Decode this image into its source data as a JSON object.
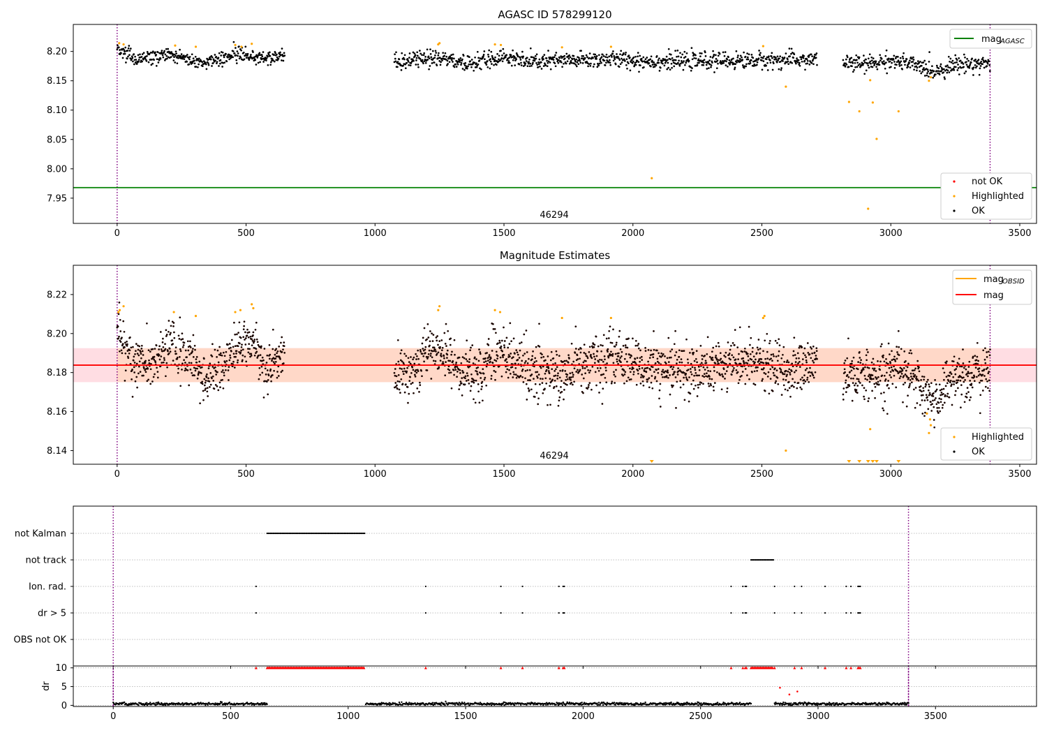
{
  "chart_data": [
    {
      "type": "scatter",
      "title": "AGASC ID 578299120",
      "xlim": [
        -170,
        3565
      ],
      "ylim": [
        7.907,
        8.246
      ],
      "xticks": [
        0,
        500,
        1000,
        1500,
        2000,
        2500,
        3000,
        3500
      ],
      "yticks": [
        7.95,
        8.0,
        8.05,
        8.1,
        8.15,
        8.2
      ],
      "ytick_labels": [
        "7.95",
        "8.00",
        "8.05",
        "8.10",
        "8.15",
        "8.20"
      ],
      "obsid_label": "46294",
      "obsid_label_x": 1695,
      "vlines": [
        0,
        3385
      ],
      "hline": {
        "name": "mag_AGASC",
        "value": 7.968,
        "color": "#008000"
      },
      "ok_segments": [
        {
          "x0": 0,
          "x1": 650,
          "ylevels": [
            [
              0,
              8.203
            ],
            [
              80,
              8.187
            ],
            [
              200,
              8.196
            ],
            [
              320,
              8.181
            ],
            [
              480,
              8.197
            ],
            [
              560,
              8.187
            ],
            [
              650,
              8.193
            ]
          ],
          "spread": 0.006
        },
        {
          "x0": 1075,
          "x1": 2715,
          "ylevels": [
            [
              1075,
              8.18
            ],
            [
              1200,
              8.188
            ],
            [
              1280,
              8.187
            ],
            [
              1350,
              8.178
            ],
            [
              1480,
              8.191
            ],
            [
              1600,
              8.182
            ],
            [
              1900,
              8.187
            ],
            [
              2100,
              8.183
            ],
            [
              2500,
              8.185
            ],
            [
              2715,
              8.186
            ]
          ],
          "spread": 0.007
        },
        {
          "x0": 2815,
          "x1": 3385,
          "ylevels": [
            [
              2815,
              8.181
            ],
            [
              2900,
              8.178
            ],
            [
              3000,
              8.185
            ],
            [
              3100,
              8.176
            ],
            [
              3170,
              8.166
            ],
            [
              3250,
              8.178
            ],
            [
              3385,
              8.18
            ]
          ],
          "spread": 0.007
        }
      ],
      "highlighted": [
        [
          8,
          8.214
        ],
        [
          25,
          8.212
        ],
        [
          225,
          8.21
        ],
        [
          305,
          8.208
        ],
        [
          458,
          8.211
        ],
        [
          482,
          8.208
        ],
        [
          522,
          8.213
        ],
        [
          1245,
          8.212
        ],
        [
          1250,
          8.214
        ],
        [
          1465,
          8.212
        ],
        [
          1488,
          8.211
        ],
        [
          1725,
          8.207
        ],
        [
          1915,
          8.208
        ],
        [
          2073,
          7.984
        ],
        [
          2505,
          8.209
        ],
        [
          2593,
          8.14
        ],
        [
          2838,
          8.114
        ],
        [
          2878,
          8.098
        ],
        [
          2912,
          7.932
        ],
        [
          2920,
          8.151
        ],
        [
          2930,
          8.113
        ],
        [
          2945,
          8.051
        ],
        [
          3030,
          8.098
        ],
        [
          3148,
          8.15
        ],
        [
          3155,
          8.156
        ]
      ],
      "legend": {
        "lines": [
          {
            "label": "mag",
            "subscript": "AGASC",
            "color": "#008000"
          }
        ],
        "markers": [
          {
            "label": "not OK",
            "color": "#ff0000"
          },
          {
            "label": "Highlighted",
            "color": "#ffa500"
          },
          {
            "label": "OK",
            "color": "#000000"
          }
        ]
      }
    },
    {
      "type": "scatter",
      "title": "Magnitude Estimates",
      "xlim": [
        -170,
        3565
      ],
      "ylim": [
        8.133,
        8.235
      ],
      "xticks": [
        0,
        500,
        1000,
        1500,
        2000,
        2500,
        3000,
        3500
      ],
      "yticks": [
        8.14,
        8.16,
        8.18,
        8.2,
        8.22
      ],
      "ytick_labels": [
        "8.14",
        "8.16",
        "8.18",
        "8.20",
        "8.22"
      ],
      "obsid_label": "46294",
      "obsid_label_x": 1695,
      "vlines": [
        0,
        3385
      ],
      "mag_line": {
        "value": 8.1838,
        "color": "#ff0000"
      },
      "mag_band": {
        "low": 8.1751,
        "high": 8.1925,
        "full_x": [
          -170,
          3565
        ],
        "obsid_x": [
          0,
          3385
        ]
      },
      "ok_segments": [
        {
          "x0": 0,
          "x1": 650,
          "ylevels": [
            [
              0,
              8.2
            ],
            [
              60,
              8.185
            ],
            [
              120,
              8.183
            ],
            [
              210,
              8.194
            ],
            [
              300,
              8.186
            ],
            [
              330,
              8.176
            ],
            [
              400,
              8.181
            ],
            [
              470,
              8.197
            ],
            [
              520,
              8.195
            ],
            [
              580,
              8.182
            ],
            [
              620,
              8.186
            ],
            [
              650,
              8.192
            ]
          ],
          "spread": 0.006
        },
        {
          "x0": 1075,
          "x1": 2715,
          "ylevels": [
            [
              1075,
              8.178
            ],
            [
              1150,
              8.182
            ],
            [
              1230,
              8.192
            ],
            [
              1280,
              8.19
            ],
            [
              1330,
              8.18
            ],
            [
              1400,
              8.178
            ],
            [
              1470,
              8.192
            ],
            [
              1560,
              8.183
            ],
            [
              1700,
              8.178
            ],
            [
              1800,
              8.184
            ],
            [
              1950,
              8.187
            ],
            [
              2100,
              8.181
            ],
            [
              2300,
              8.182
            ],
            [
              2450,
              8.186
            ],
            [
              2600,
              8.18
            ],
            [
              2715,
              8.186
            ]
          ],
          "spread": 0.0065
        },
        {
          "x0": 2815,
          "x1": 3385,
          "ylevels": [
            [
              2815,
              8.18
            ],
            [
              2900,
              8.178
            ],
            [
              2980,
              8.18
            ],
            [
              3030,
              8.186
            ],
            [
              3100,
              8.174
            ],
            [
              3170,
              8.164
            ],
            [
              3230,
              8.178
            ],
            [
              3300,
              8.178
            ],
            [
              3385,
              8.182
            ]
          ],
          "spread": 0.0065
        }
      ],
      "highlighted": [
        [
          5,
          8.211
        ],
        [
          10,
          8.212
        ],
        [
          25,
          8.214
        ],
        [
          220,
          8.211
        ],
        [
          305,
          8.209
        ],
        [
          458,
          8.211
        ],
        [
          478,
          8.212
        ],
        [
          522,
          8.215
        ],
        [
          528,
          8.213
        ],
        [
          1245,
          8.212
        ],
        [
          1250,
          8.214
        ],
        [
          1465,
          8.212
        ],
        [
          1485,
          8.211
        ],
        [
          1725,
          8.208
        ],
        [
          1915,
          8.208
        ],
        [
          2505,
          8.208
        ],
        [
          2510,
          8.209
        ],
        [
          2593,
          8.14
        ],
        [
          2920,
          8.151
        ],
        [
          3148,
          8.149
        ],
        [
          3140,
          8.159
        ],
        [
          3152,
          8.156
        ],
        [
          3155,
          8.153
        ]
      ],
      "off_scale_low": [
        2073,
        2838,
        2878,
        2912,
        2930,
        2945,
        3030
      ],
      "legend": {
        "lines": [
          {
            "label": "mag",
            "subscript": "OBSID",
            "color": "#ffa500"
          },
          {
            "label": "mag",
            "subscript": "",
            "color": "#ff0000"
          }
        ],
        "markers": [
          {
            "label": "Highlighted",
            "color": "#ffa500"
          },
          {
            "label": "OK",
            "color": "#000000"
          }
        ]
      }
    },
    {
      "type": "scatter",
      "xlim": [
        -170,
        3930
      ],
      "xticks": [
        0,
        500,
        1000,
        1500,
        2000,
        2500,
        3000,
        3500
      ],
      "vlines": [
        0,
        3385
      ],
      "flags": [
        {
          "label": "not Kalman",
          "ranges": [
            [
              655,
              1070
            ]
          ],
          "points": []
        },
        {
          "label": "not track",
          "ranges": [
            [
              2715,
              2810
            ]
          ],
          "points": []
        },
        {
          "label": "Ion. rad.",
          "ranges": [],
          "points": [
            608,
            1330,
            1650,
            1742,
            1897,
            1915,
            1920,
            2630,
            2680,
            2690,
            2695,
            2815,
            2900,
            2930,
            3030,
            3120,
            3140,
            3170,
            3175,
            3180
          ]
        },
        {
          "label": "dr > 5",
          "ranges": [],
          "points": [
            608,
            1330,
            1650,
            1742,
            1897,
            1915,
            1920,
            2630,
            2680,
            2690,
            2695,
            2815,
            2900,
            2930,
            3030,
            3120,
            3140,
            3170,
            3175,
            3180
          ]
        },
        {
          "label": "OBS not OK",
          "ranges": [],
          "points": []
        }
      ]
    },
    {
      "type": "scatter",
      "ylabel": "dr",
      "xlim": [
        -170,
        3930
      ],
      "ylim": [
        -0.3,
        10.5
      ],
      "yticks": [
        0,
        5,
        10
      ],
      "ytick_labels": [
        "0",
        "5",
        "10"
      ],
      "xticks": [
        0,
        500,
        1000,
        1500,
        2000,
        2500,
        3000,
        3500
      ],
      "xtick_labels": [
        "0",
        "500",
        "1000",
        "1500",
        "2000",
        "2500",
        "3000",
        "3500"
      ],
      "vlines": [
        0,
        3385
      ],
      "dr_segments": [
        [
          0,
          655
        ],
        [
          1075,
          2715
        ],
        [
          2815,
          3385
        ]
      ],
      "dr_level": 0.4,
      "capped_value": 10,
      "capped_ranges": [
        [
          655,
          1070
        ],
        [
          2715,
          2810
        ]
      ],
      "capped_points": [
        608,
        1330,
        1650,
        1742,
        1897,
        1915,
        1920,
        2630,
        2680,
        2690,
        2695,
        2815,
        2900,
        2930,
        3030,
        3120,
        3140,
        3170,
        3175,
        3180
      ],
      "scattered_red": [
        [
          2838,
          4.7
        ],
        [
          2878,
          2.9
        ],
        [
          2912,
          3.7
        ]
      ]
    }
  ]
}
